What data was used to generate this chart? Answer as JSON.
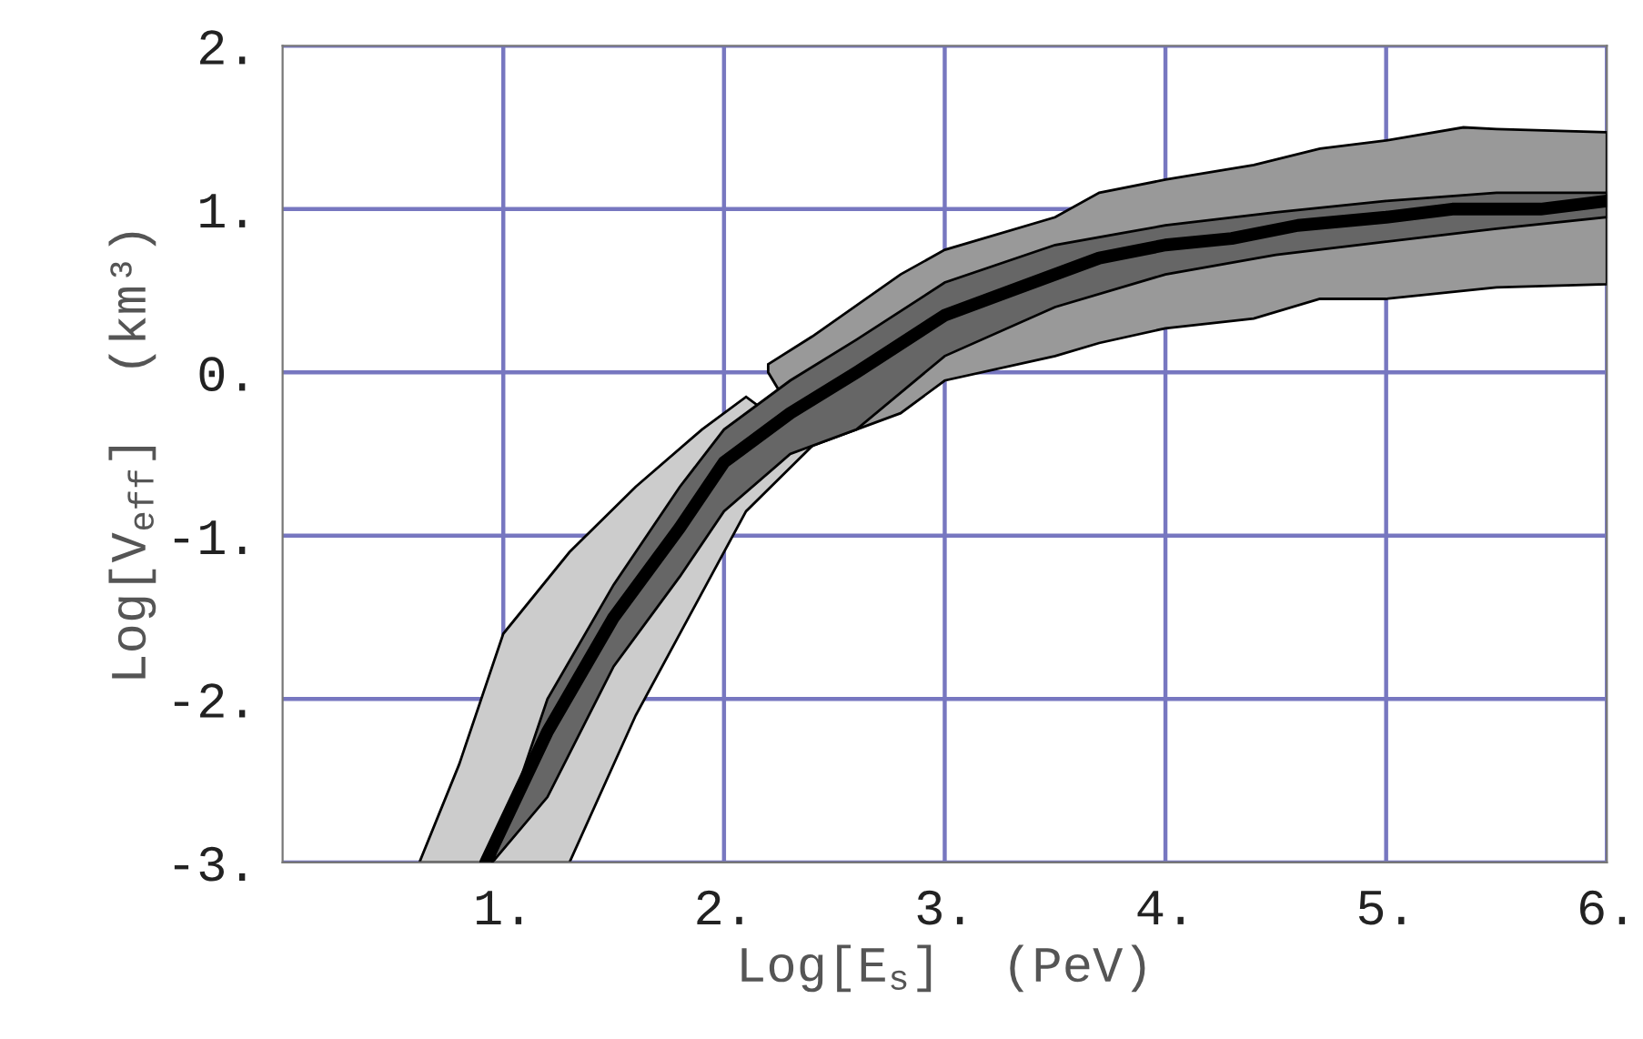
{
  "chart_data": {
    "type": "line",
    "xlabel": "Log[E$_{s}$]  (PeV)",
    "ylabel": "Log[V$_{eff}$]  (km³)",
    "xlim": [
      0,
      6
    ],
    "ylim": [
      -3,
      2
    ],
    "xticks": [
      {
        "value": 1,
        "label": "1."
      },
      {
        "value": 2,
        "label": "2."
      },
      {
        "value": 3,
        "label": "3."
      },
      {
        "value": 4,
        "label": "4."
      },
      {
        "value": 5,
        "label": "5."
      },
      {
        "value": 6,
        "label": "6."
      }
    ],
    "yticks": [
      {
        "value": -3,
        "label": "-3."
      },
      {
        "value": -2,
        "label": "-2."
      },
      {
        "value": -1,
        "label": "-1."
      },
      {
        "value": 0,
        "label": "0."
      },
      {
        "value": 1,
        "label": "1."
      },
      {
        "value": 2,
        "label": "2."
      }
    ],
    "grid": true,
    "legend": false,
    "series": [
      {
        "color": "#cccccc",
        "x": [
          0.62,
          0.8,
          1.0,
          1.3,
          1.6,
          1.9,
          2.1,
          2.4
        ],
        "values": [
          null,
          null,
          null,
          null,
          null,
          null,
          null,
          null
        ],
        "upper": [
          -3,
          -2.4,
          -1.6,
          -1.1,
          -0.7,
          -0.35,
          -0.15,
          -0.45
        ],
        "lower": [
          -3,
          -3,
          -3,
          -3,
          -2.1,
          -1.35,
          -0.85,
          -0.45
        ]
      },
      {
        "color": "#999999",
        "x": [
          2.2,
          2.4,
          2.8,
          3.0,
          3.5,
          3.7,
          4.0,
          4.4,
          4.7,
          5.0,
          5.35,
          5.5,
          6.0
        ],
        "values": [
          null,
          null,
          null,
          null,
          null,
          null,
          null,
          null,
          null,
          null,
          null,
          null,
          null
        ],
        "upper": [
          0.05,
          0.22,
          0.6,
          0.75,
          0.95,
          1.1,
          1.18,
          1.27,
          1.37,
          1.42,
          1.5,
          1.49,
          1.47
        ],
        "lower": [
          0.0,
          -0.45,
          -0.25,
          -0.05,
          0.1,
          0.18,
          0.27,
          0.33,
          0.45,
          0.45,
          0.5,
          0.52,
          0.54
        ]
      },
      {
        "color": "#666666",
        "x": [
          0.95,
          1.2,
          1.5,
          1.8,
          2.0,
          2.3,
          2.6,
          3.0,
          3.5,
          4.0,
          4.5,
          5.0,
          5.5,
          6.0
        ],
        "values": [
          null,
          null,
          null,
          null,
          null,
          null,
          null,
          null,
          null,
          null,
          null,
          null,
          null,
          null
        ],
        "upper": [
          -3,
          -2.0,
          -1.3,
          -0.7,
          -0.35,
          -0.05,
          0.2,
          0.55,
          0.78,
          0.9,
          0.98,
          1.05,
          1.1,
          1.1
        ],
        "lower": [
          -3,
          -2.6,
          -1.8,
          -1.25,
          -0.85,
          -0.5,
          -0.35,
          0.1,
          0.4,
          0.6,
          0.72,
          0.8,
          0.88,
          0.95
        ]
      },
      {
        "color": "#000000",
        "x": [
          0.92,
          1.2,
          1.5,
          1.8,
          2.0,
          2.3,
          2.6,
          3.0,
          3.3,
          3.7,
          4.0,
          4.3,
          4.6,
          5.0,
          5.3,
          5.7,
          6.0
        ],
        "values": [
          -3.0,
          -2.2,
          -1.5,
          -0.95,
          -0.55,
          -0.25,
          0.0,
          0.35,
          0.5,
          0.7,
          0.78,
          0.82,
          0.9,
          0.95,
          1.0,
          1.0,
          1.05
        ]
      }
    ]
  }
}
